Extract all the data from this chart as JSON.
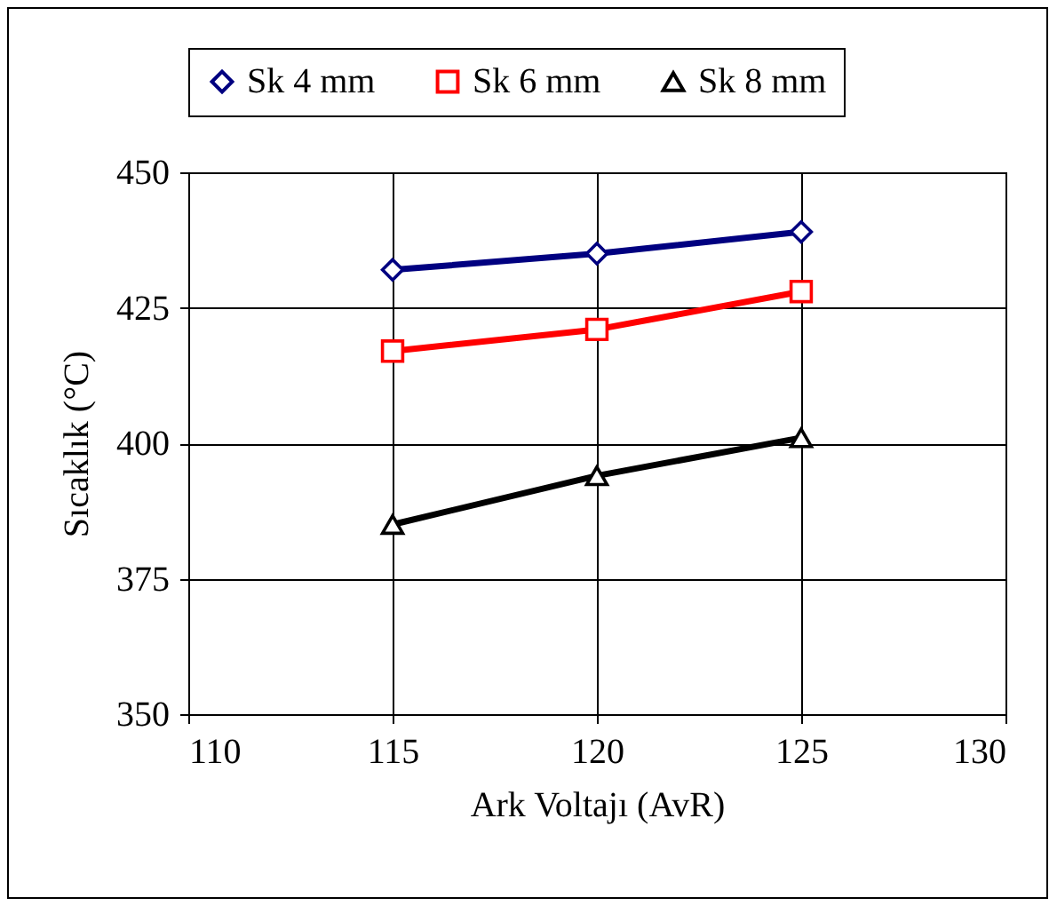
{
  "chart_data": {
    "type": "line",
    "xlabel": "Ark Voltajı (AvR)",
    "ylabel": "Sıcaklık (°C)",
    "x": [
      115,
      120,
      125
    ],
    "series": [
      {
        "name": "Sk 4 mm",
        "color": "#000080",
        "marker": "diamond",
        "values": [
          432,
          435,
          439
        ]
      },
      {
        "name": "Sk 6 mm",
        "color": "#ff0000",
        "marker": "square",
        "values": [
          417,
          421,
          428
        ]
      },
      {
        "name": "Sk 8 mm",
        "color": "#000000",
        "marker": "triangle",
        "values": [
          385,
          394,
          401
        ]
      }
    ],
    "xlim": [
      110,
      130
    ],
    "xticks": [
      110,
      115,
      120,
      125,
      130
    ],
    "ylim": [
      350,
      450
    ],
    "yticks": [
      350,
      375,
      400,
      425,
      450
    ],
    "grid": true,
    "legend": "top",
    "line_style": "solid"
  }
}
